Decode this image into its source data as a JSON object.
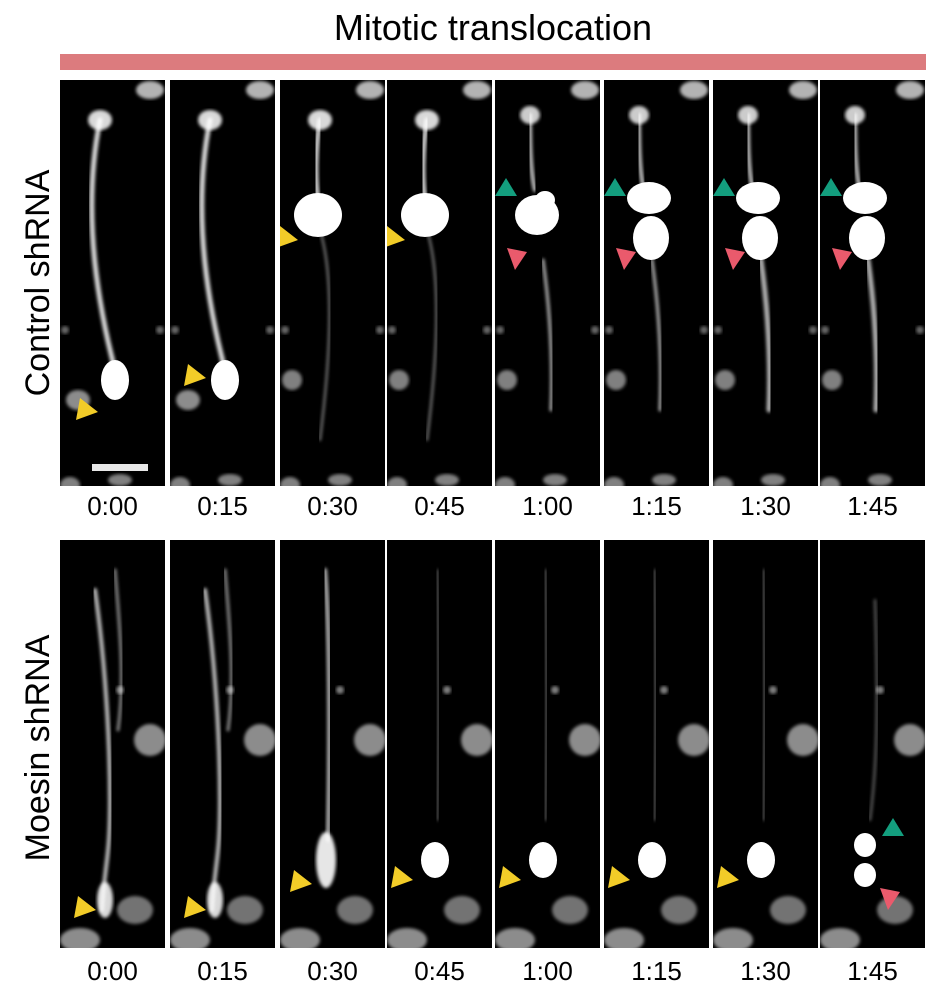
{
  "title": "Mitotic translocation",
  "bar_color": "#dc7b7e",
  "marker_colors": {
    "yellow": "#f2cc28",
    "green": "#139e7e",
    "pink": "#ea5a6c"
  },
  "rows": [
    {
      "label": "Control shRNA",
      "times": [
        "0:00",
        "0:15",
        "0:30",
        "0:45",
        "1:00",
        "1:15",
        "1:30",
        "1:45"
      ],
      "has_scale_bar": true
    },
    {
      "label": "Moesin shRNA",
      "times": [
        "0:00",
        "0:15",
        "0:30",
        "0:45",
        "1:00",
        "1:15",
        "1:30",
        "1:45"
      ],
      "has_scale_bar": false
    }
  ]
}
